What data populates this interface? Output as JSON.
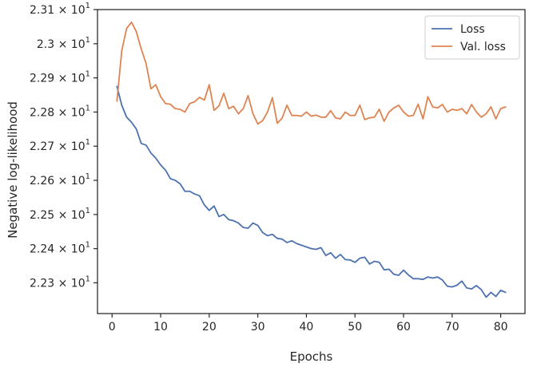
{
  "chart_data": {
    "type": "line",
    "xlabel": "Epochs",
    "ylabel": "Negative log-likelihood",
    "xlim": [
      -3.0,
      85.0
    ],
    "ylim": [
      22.21,
      23.1
    ],
    "x_ticks": [
      0,
      10,
      20,
      30,
      40,
      50,
      60,
      70,
      80
    ],
    "y_ticks": [
      {
        "value": 22.3,
        "mantissa": "2.23",
        "base": "10",
        "exp": "1"
      },
      {
        "value": 22.4,
        "mantissa": "2.24",
        "base": "10",
        "exp": "1"
      },
      {
        "value": 22.5,
        "mantissa": "2.25",
        "base": "10",
        "exp": "1"
      },
      {
        "value": 22.6,
        "mantissa": "2.26",
        "base": "10",
        "exp": "1"
      },
      {
        "value": 22.7,
        "mantissa": "2.27",
        "base": "10",
        "exp": "1"
      },
      {
        "value": 22.8,
        "mantissa": "2.28",
        "base": "10",
        "exp": "1"
      },
      {
        "value": 22.9,
        "mantissa": "2.29",
        "base": "10",
        "exp": "1"
      },
      {
        "value": 23.0,
        "mantissa": "2.3",
        "base": "10",
        "exp": "1"
      },
      {
        "value": 23.1,
        "mantissa": "2.31",
        "base": "10",
        "exp": "1"
      }
    ],
    "grid": false,
    "legend_position": "top-right",
    "series": [
      {
        "name": "Loss",
        "color": "#4c72b0",
        "x": [
          1,
          2,
          3,
          4,
          5,
          6,
          7,
          8,
          9,
          10,
          11,
          12,
          13,
          14,
          15,
          16,
          17,
          18,
          19,
          20,
          21,
          22,
          23,
          24,
          25,
          26,
          27,
          28,
          29,
          30,
          31,
          32,
          33,
          34,
          35,
          36,
          37,
          38,
          39,
          40,
          41,
          42,
          43,
          44,
          45,
          46,
          47,
          48,
          49,
          50,
          51,
          52,
          53,
          54,
          55,
          56,
          57,
          58,
          59,
          60,
          61,
          62,
          63,
          64,
          65,
          66,
          67,
          68,
          69,
          70,
          71,
          72,
          73,
          74,
          75,
          76,
          77,
          78,
          79,
          80,
          81
        ],
        "values": [
          22.875,
          22.82,
          22.785,
          22.77,
          22.75,
          22.708,
          22.703,
          22.68,
          22.665,
          22.645,
          22.63,
          22.605,
          22.6,
          22.59,
          22.568,
          22.568,
          22.56,
          22.555,
          22.528,
          22.512,
          22.525,
          22.494,
          22.5,
          22.485,
          22.482,
          22.475,
          22.462,
          22.46,
          22.475,
          22.468,
          22.447,
          22.438,
          22.442,
          22.43,
          22.428,
          22.418,
          22.423,
          22.415,
          22.41,
          22.405,
          22.4,
          22.398,
          22.403,
          22.38,
          22.388,
          22.372,
          22.383,
          22.368,
          22.367,
          22.36,
          22.372,
          22.375,
          22.355,
          22.363,
          22.36,
          22.338,
          22.34,
          22.325,
          22.322,
          22.337,
          22.323,
          22.312,
          22.312,
          22.31,
          22.317,
          22.314,
          22.317,
          22.308,
          22.29,
          22.288,
          22.293,
          22.305,
          22.285,
          22.282,
          22.292,
          22.28,
          22.258,
          22.272,
          22.26,
          22.278,
          22.272
        ]
      },
      {
        "name": "Val. loss",
        "color": "#dd8452",
        "x": [
          1,
          2,
          3,
          4,
          5,
          6,
          7,
          8,
          9,
          10,
          11,
          12,
          13,
          14,
          15,
          16,
          17,
          18,
          19,
          20,
          21,
          22,
          23,
          24,
          25,
          26,
          27,
          28,
          29,
          30,
          31,
          32,
          33,
          34,
          35,
          36,
          37,
          38,
          39,
          40,
          41,
          42,
          43,
          44,
          45,
          46,
          47,
          48,
          49,
          50,
          51,
          52,
          53,
          54,
          55,
          56,
          57,
          58,
          59,
          60,
          61,
          62,
          63,
          64,
          65,
          66,
          67,
          68,
          69,
          70,
          71,
          72,
          73,
          74,
          75,
          76,
          77,
          78,
          79,
          80,
          81
        ],
        "values": [
          22.832,
          22.98,
          23.045,
          23.063,
          23.035,
          22.985,
          22.942,
          22.868,
          22.88,
          22.845,
          22.825,
          22.823,
          22.81,
          22.808,
          22.8,
          22.825,
          22.83,
          22.843,
          22.835,
          22.88,
          22.805,
          22.818,
          22.855,
          22.81,
          22.817,
          22.795,
          22.81,
          22.848,
          22.795,
          22.765,
          22.775,
          22.8,
          22.842,
          22.767,
          22.782,
          22.82,
          22.79,
          22.79,
          22.788,
          22.8,
          22.788,
          22.791,
          22.785,
          22.785,
          22.804,
          22.783,
          22.78,
          22.8,
          22.79,
          22.79,
          22.82,
          22.778,
          22.783,
          22.785,
          22.808,
          22.773,
          22.8,
          22.812,
          22.82,
          22.8,
          22.788,
          22.79,
          22.823,
          22.78,
          22.845,
          22.815,
          22.812,
          22.822,
          22.8,
          22.808,
          22.805,
          22.81,
          22.795,
          22.822,
          22.8,
          22.785,
          22.795,
          22.815,
          22.78,
          22.81,
          22.815
        ]
      }
    ]
  }
}
